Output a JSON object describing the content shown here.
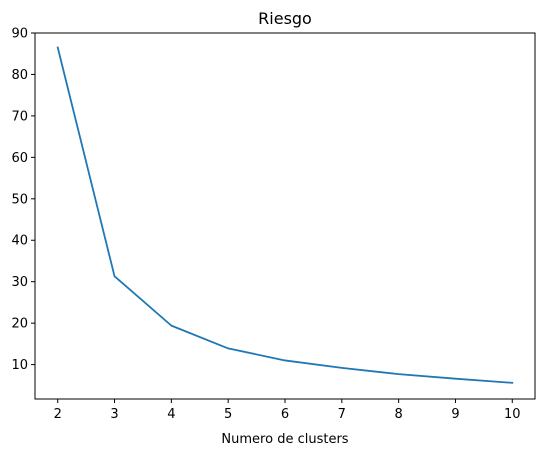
{
  "chart_data": {
    "type": "line",
    "title": "Riesgo",
    "xlabel": "Numero de clusters",
    "ylabel": "",
    "x": [
      2,
      3,
      4,
      5,
      6,
      7,
      8,
      9,
      10
    ],
    "series": [
      {
        "values": [
          86.5,
          31.3,
          19.4,
          13.9,
          11.0,
          9.2,
          7.7,
          6.6,
          5.6
        ],
        "color": "#1f77b4"
      }
    ],
    "xlim": [
      1.6,
      10.4
    ],
    "ylim": [
      1.7,
      90.0
    ],
    "xticks": [
      2,
      3,
      4,
      5,
      6,
      7,
      8,
      9,
      10
    ],
    "yticks": [
      10,
      20,
      30,
      40,
      50,
      60,
      70,
      80,
      90
    ],
    "grid": false
  }
}
